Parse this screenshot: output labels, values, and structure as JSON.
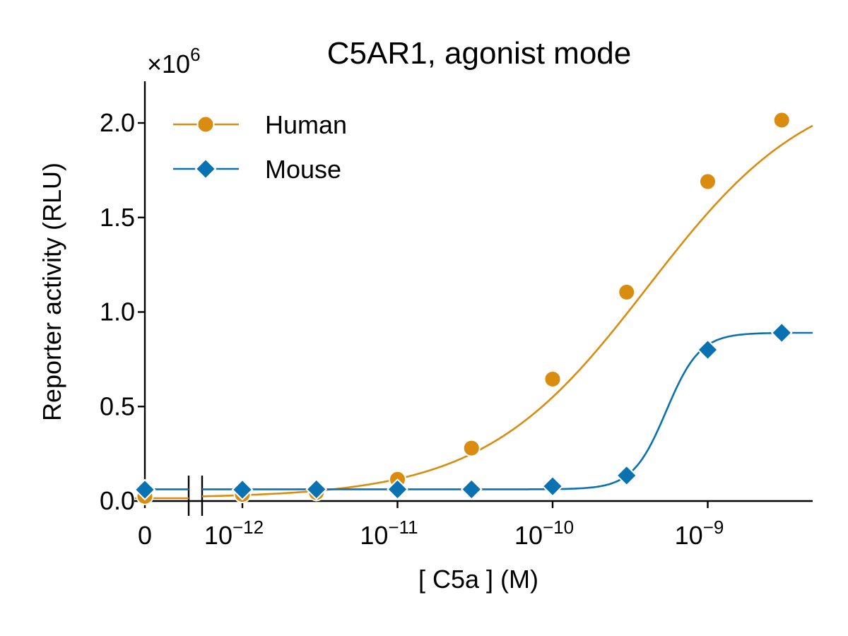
{
  "chart_data": {
    "type": "line",
    "title": "C5AR1, agonist mode",
    "xlabel": "[ C5a ] (M)",
    "ylabel": "Reporter activity (RLU)",
    "y_multiplier_label": "×10",
    "y_multiplier_exponent": "6",
    "x_scale": "log",
    "x_axis_break": true,
    "x_zero_label": "0",
    "xticks": [
      {
        "base": "10",
        "exp": "−12",
        "value": 1e-12
      },
      {
        "base": "10",
        "exp": "−11",
        "value": 1e-11
      },
      {
        "base": "10",
        "exp": "−10",
        "value": 1e-10
      },
      {
        "base": "10",
        "exp": "−9",
        "value": 1e-09
      }
    ],
    "yticks": [
      "0.0",
      "0.5",
      "1.0",
      "1.5",
      "2.0"
    ],
    "ytick_values": [
      0,
      500000,
      1000000,
      1500000,
      2000000
    ],
    "ylim": [
      0,
      2220000
    ],
    "xlim": [
      0,
      5e-09
    ],
    "legend_position": "top-left",
    "grid": false,
    "series": [
      {
        "name": "Human",
        "color": "#D98C0F",
        "marker": "circle",
        "x": [
          0,
          1e-12,
          3e-12,
          1e-11,
          3e-11,
          1e-10,
          3e-10,
          1e-09,
          3e-09
        ],
        "y": [
          25000,
          35000,
          45000,
          115000,
          280000,
          645000,
          1105000,
          1690000,
          2015000
        ],
        "fit": {
          "bottom": 15000,
          "top": 2250000,
          "ec50": 4.1e-10,
          "hill": 0.82
        }
      },
      {
        "name": "Mouse",
        "color": "#0A72B0",
        "marker": "diamond",
        "x": [
          0,
          1e-12,
          3e-12,
          1e-11,
          3e-11,
          1e-10,
          3e-10,
          1e-09,
          3e-09
        ],
        "y": [
          60000,
          60000,
          62000,
          62000,
          62000,
          78000,
          135000,
          800000,
          890000
        ],
        "fit": {
          "bottom": 62000,
          "top": 890000,
          "ec50": 5.4e-10,
          "hill": 4.0
        }
      }
    ]
  }
}
